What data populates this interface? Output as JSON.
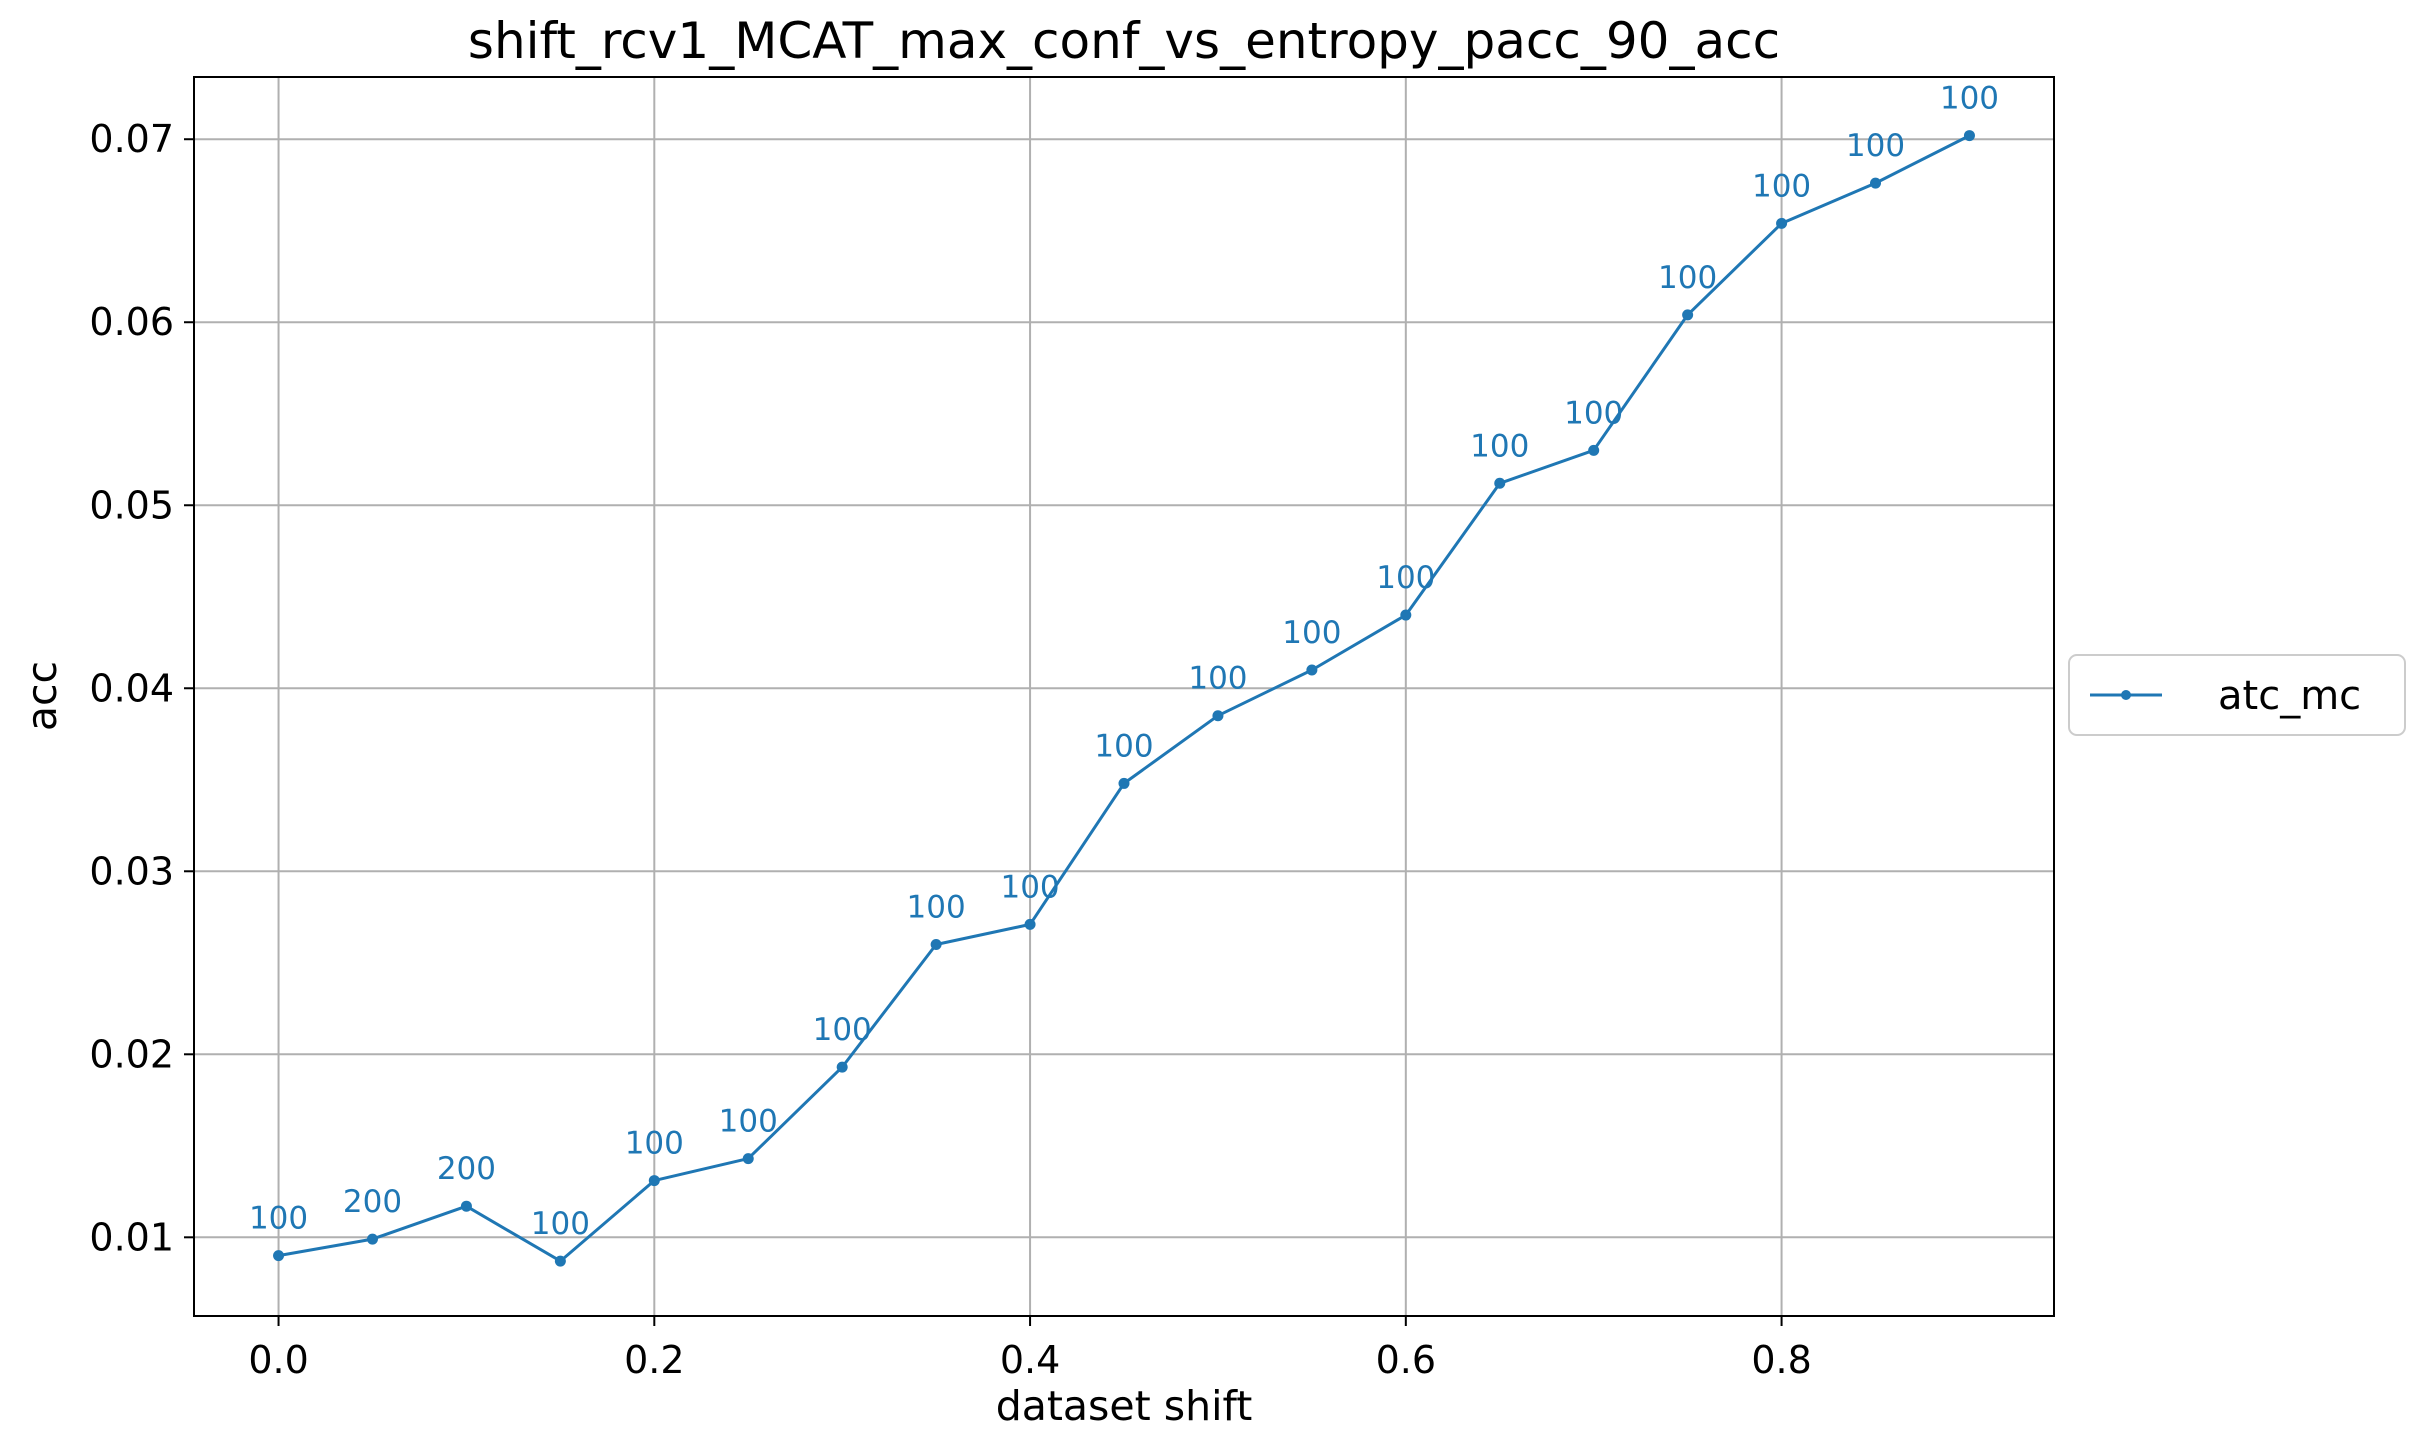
{
  "chart_data": {
    "type": "line",
    "title": "shift_rcv1_MCAT_max_conf_vs_entropy_pacc_90_acc",
    "xlabel": "dataset shift",
    "ylabel": "acc",
    "xlim": [
      -0.045,
      0.945
    ],
    "ylim": [
      0.0057,
      0.0734
    ],
    "xticks": [
      0.0,
      0.2,
      0.4,
      0.6,
      0.8
    ],
    "xtick_labels": [
      "0.0",
      "0.2",
      "0.4",
      "0.6",
      "0.8"
    ],
    "yticks": [
      0.01,
      0.02,
      0.03,
      0.04,
      0.05,
      0.06,
      0.07
    ],
    "ytick_labels": [
      "0.01",
      "0.02",
      "0.03",
      "0.04",
      "0.05",
      "0.06",
      "0.07"
    ],
    "grid": true,
    "legend_position": "center-right outside",
    "x": [
      0.0,
      0.05,
      0.1,
      0.15,
      0.2,
      0.25,
      0.3,
      0.35,
      0.4,
      0.45,
      0.5,
      0.55,
      0.6,
      0.65,
      0.7,
      0.75,
      0.8,
      0.85,
      0.9
    ],
    "series": [
      {
        "name": "atc_mc",
        "color": "#1f77b4",
        "values": [
          0.009,
          0.0099,
          0.0117,
          0.0087,
          0.0131,
          0.0143,
          0.0193,
          0.026,
          0.0271,
          0.0348,
          0.0385,
          0.041,
          0.044,
          0.0512,
          0.053,
          0.0604,
          0.0654,
          0.0676,
          0.0702
        ],
        "point_labels": [
          "100",
          "200",
          "200",
          "100",
          "100",
          "100",
          "100",
          "100",
          "100",
          "100",
          "100",
          "100",
          "100",
          "100",
          "100",
          "100",
          "100",
          "100",
          "100"
        ]
      }
    ]
  }
}
